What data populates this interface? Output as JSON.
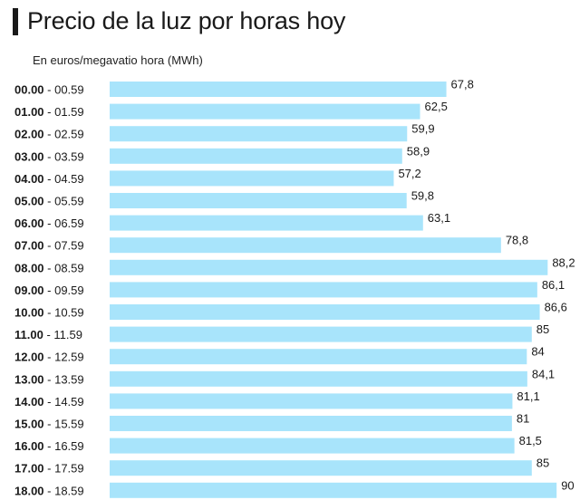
{
  "title": "Precio de la luz por horas hoy",
  "subtitle": "En euros/megavatio hora (MWh)",
  "colors": {
    "bar": "#a8e4fb",
    "text": "#1a1a1a"
  },
  "chart_data": {
    "type": "bar",
    "orientation": "horizontal",
    "title": "Precio de la luz por horas hoy",
    "subtitle": "En euros/megavatio hora (MWh)",
    "categories": [
      {
        "start": "00.00",
        "end": "00.59"
      },
      {
        "start": "01.00",
        "end": "01.59"
      },
      {
        "start": "02.00",
        "end": "02.59"
      },
      {
        "start": "03.00",
        "end": "03.59"
      },
      {
        "start": "04.00",
        "end": "04.59"
      },
      {
        "start": "05.00",
        "end": "05.59"
      },
      {
        "start": "06.00",
        "end": "06.59"
      },
      {
        "start": "07.00",
        "end": "07.59"
      },
      {
        "start": "08.00",
        "end": "08.59"
      },
      {
        "start": "09.00",
        "end": "09.59"
      },
      {
        "start": "10.00",
        "end": "10.59"
      },
      {
        "start": "11.00",
        "end": "11.59"
      },
      {
        "start": "12.00",
        "end": "12.59"
      },
      {
        "start": "13.00",
        "end": "13.59"
      },
      {
        "start": "14.00",
        "end": "14.59"
      },
      {
        "start": "15.00",
        "end": "15.59"
      },
      {
        "start": "16.00",
        "end": "16.59"
      },
      {
        "start": "17.00",
        "end": "17.59"
      },
      {
        "start": "18.00",
        "end": "18.59"
      }
    ],
    "values": [
      67.8,
      62.5,
      59.9,
      58.9,
      57.2,
      59.8,
      63.1,
      78.8,
      88.2,
      86.1,
      86.6,
      85,
      84,
      84.1,
      81.1,
      81,
      81.5,
      85,
      90
    ],
    "value_labels": [
      "67,8",
      "62,5",
      "59,9",
      "58,9",
      "57,2",
      "59,8",
      "63,1",
      "78,8",
      "88,2",
      "86,1",
      "86,6",
      "85",
      "84",
      "84,1",
      "81,1",
      "81",
      "81,5",
      "85",
      "90"
    ],
    "grid": false,
    "legend": "none"
  }
}
